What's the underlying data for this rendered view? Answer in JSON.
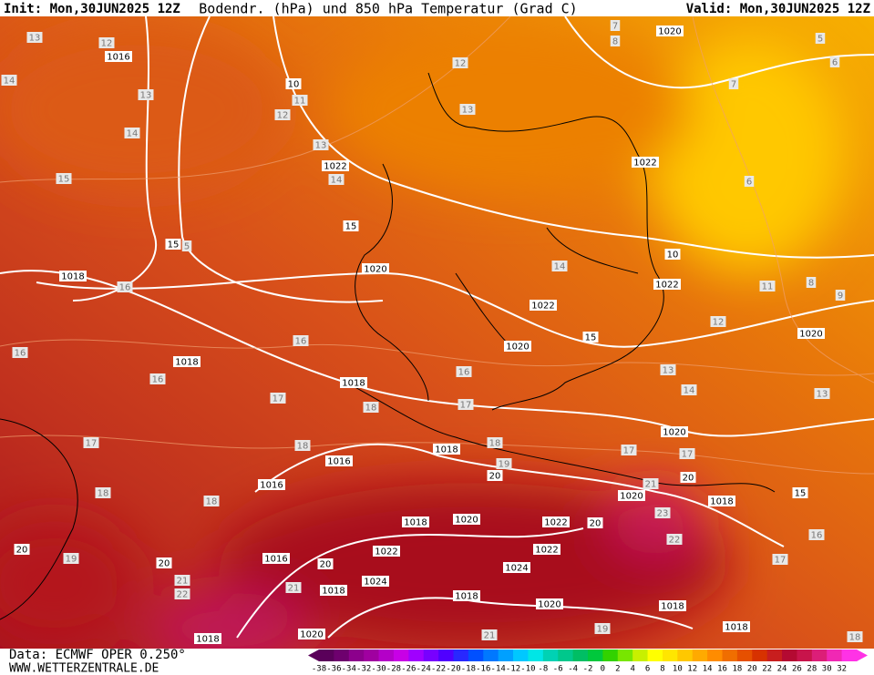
{
  "header": {
    "init": "Init: Mon,30JUN2025 12Z",
    "title": "Bodendr. (hPa) und 850 hPa Temperatur (Grad C)",
    "valid": "Valid: Mon,30JUN2025 12Z"
  },
  "footer": {
    "source": "Data: ECMWF OPER 0.250°",
    "site": "WWW.WETTERZENTRALE.DE"
  },
  "isobar_labels": [
    "1016",
    "1020",
    "1022",
    "1022",
    "1020",
    "1018",
    "1022",
    "1022",
    "1020",
    "1020",
    "1018",
    "1018",
    "1020",
    "1018",
    "1016",
    "1016",
    "1020",
    "1018",
    "1018",
    "1020",
    "1022",
    "1022",
    "1022",
    "1016",
    "1024",
    "1024",
    "1018",
    "1018",
    "1020",
    "1018",
    "1018",
    "1020",
    "1018",
    "10",
    "10",
    "15",
    "15",
    "15",
    "15",
    "20",
    "20",
    "20",
    "20",
    "20",
    "20"
  ],
  "isotherm_labels": [
    "13",
    "12",
    "14",
    "13",
    "12",
    "11",
    "14",
    "13",
    "15",
    "14",
    "12",
    "13",
    "5",
    "16",
    "14",
    "16",
    "16",
    "16",
    "17",
    "16",
    "17",
    "18",
    "17",
    "18",
    "18",
    "19",
    "18",
    "18",
    "17",
    "17",
    "13",
    "14",
    "13",
    "11",
    "12",
    "8",
    "9",
    "6",
    "7",
    "6",
    "5",
    "8",
    "7",
    "16",
    "17",
    "19",
    "21",
    "22",
    "21",
    "22",
    "23",
    "21",
    "19",
    "21",
    "18"
  ],
  "scale": {
    "ticks": [
      -38,
      -36,
      -34,
      -32,
      -30,
      -28,
      -26,
      -24,
      -22,
      -20,
      -18,
      -16,
      -14,
      -12,
      -10,
      -8,
      -6,
      -4,
      -2,
      0,
      2,
      4,
      6,
      8,
      10,
      12,
      14,
      16,
      18,
      20,
      22,
      24,
      26,
      28,
      30,
      32
    ],
    "colors": [
      "#5a005a",
      "#6e006e",
      "#8c008c",
      "#a000a0",
      "#b400c8",
      "#c800e6",
      "#a000ff",
      "#7800ff",
      "#5000ff",
      "#2828ff",
      "#0050ff",
      "#0078ff",
      "#00a0ff",
      "#00c8ff",
      "#00e6e6",
      "#00d2b4",
      "#00c88c",
      "#00be64",
      "#00c83c",
      "#32d200",
      "#78e600",
      "#c8f000",
      "#ffff00",
      "#ffe600",
      "#ffc800",
      "#ffaa00",
      "#ff8c00",
      "#f06e00",
      "#e65000",
      "#d73200",
      "#c81e1e",
      "#b40a32",
      "#c8144b",
      "#dc1e78",
      "#f028b4",
      "#ff32e6"
    ]
  }
}
